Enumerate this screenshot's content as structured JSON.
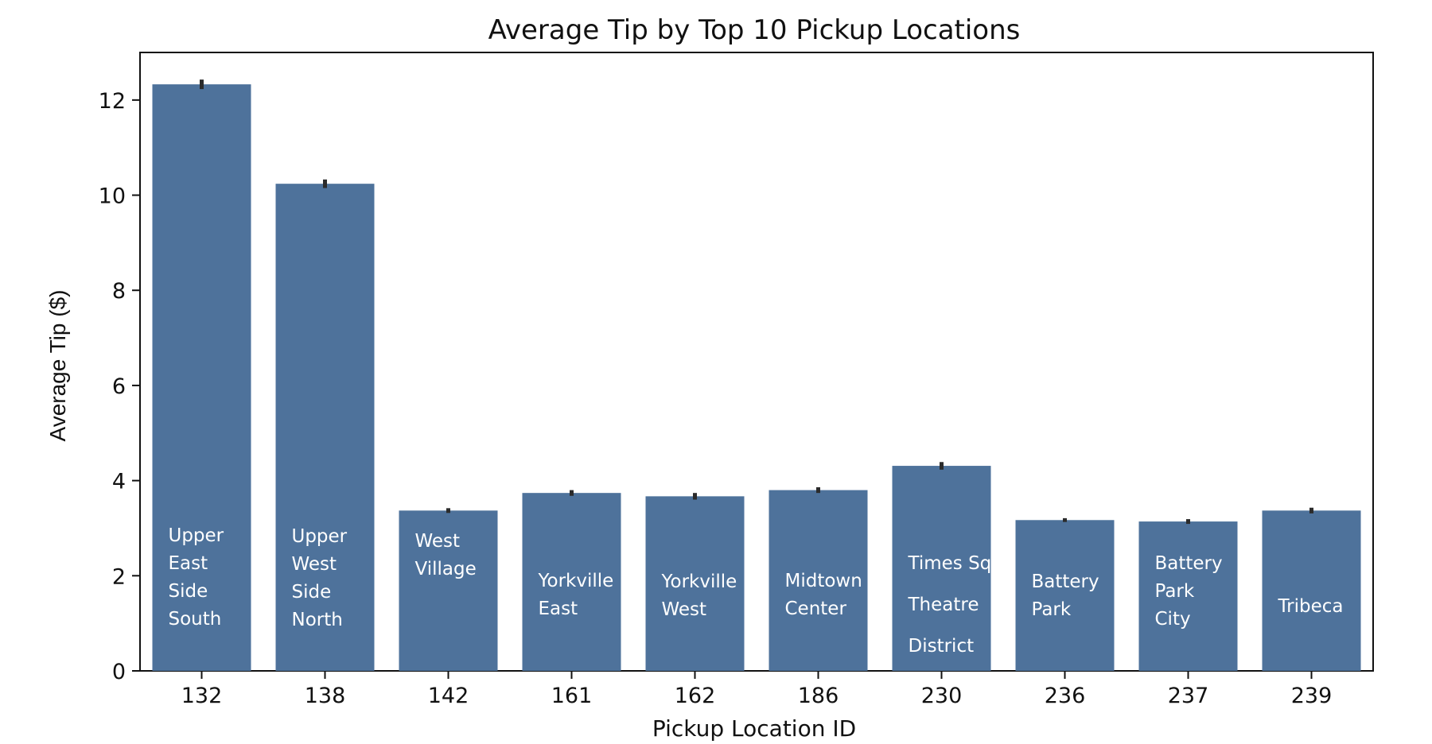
{
  "chart_data": {
    "type": "bar",
    "title": "Average Tip by Top 10 Pickup Locations",
    "xlabel": "Pickup Location ID",
    "ylabel": "Average Tip ($)",
    "ylim": [
      0,
      13
    ],
    "yticks": [
      "0",
      "2",
      "4",
      "6",
      "8",
      "10",
      "12"
    ],
    "categories": [
      "132",
      "138",
      "142",
      "161",
      "162",
      "186",
      "230",
      "236",
      "237",
      "239"
    ],
    "values": [
      12.33,
      10.24,
      3.37,
      3.74,
      3.67,
      3.8,
      4.31,
      3.17,
      3.14,
      3.37
    ],
    "error_half": [
      0.1,
      0.09,
      0.05,
      0.06,
      0.07,
      0.06,
      0.08,
      0.04,
      0.05,
      0.06
    ],
    "bar_labels": [
      [
        "Upper",
        "East",
        "Side",
        "South"
      ],
      [
        "Upper",
        "West",
        "Side",
        "North"
      ],
      [
        "West",
        "Village"
      ],
      [
        "Yorkville",
        "East"
      ],
      [
        "Yorkville",
        "West"
      ],
      [
        "Midtown",
        "Center"
      ],
      [
        "Times Sq",
        "Theatre",
        "District"
      ],
      [
        "Battery",
        "Park"
      ],
      [
        "Battery",
        "Park",
        "City"
      ],
      [
        "Tribeca"
      ]
    ],
    "grid": false,
    "colors": {
      "bar": "#4e729b",
      "error": "#2b2b2b",
      "axis": "#111111",
      "bar_label": "#ffffff"
    }
  }
}
